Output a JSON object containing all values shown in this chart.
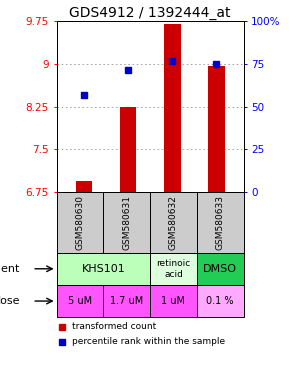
{
  "title": "GDS4912 / 1392444_at",
  "samples": [
    "GSM580630",
    "GSM580631",
    "GSM580632",
    "GSM580633"
  ],
  "bar_values": [
    6.95,
    8.25,
    9.7,
    8.97
  ],
  "bar_bottom": 6.75,
  "blue_values": [
    8.45,
    8.9,
    9.05,
    9.0
  ],
  "ylim": [
    6.75,
    9.75
  ],
  "yticks": [
    6.75,
    7.5,
    8.25,
    9.0,
    9.75
  ],
  "ytick_labels": [
    "6.75",
    "7.5",
    "8.25",
    "9",
    "9.75"
  ],
  "right_yticks": [
    0,
    25,
    50,
    75,
    100
  ],
  "right_ytick_labels": [
    "0",
    "25",
    "50",
    "75",
    "100%"
  ],
  "bar_color": "#cc0000",
  "blue_color": "#0000cc",
  "agent_colors": [
    "#bbffbb",
    "#bbffbb",
    "#ddffdd",
    "#22cc55"
  ],
  "dose_colors": [
    "#ff55ff",
    "#ff55ff",
    "#ff55ff",
    "#ffaaff"
  ],
  "sample_bg": "#cccccc",
  "legend_red": "transformed count",
  "legend_blue": "percentile rank within the sample",
  "grid_color": "#999999",
  "title_fontsize": 10,
  "tick_fontsize": 7.5,
  "dose_labels": [
    "5 uM",
    "1.7 uM",
    "1 uM",
    "0.1 %"
  ]
}
